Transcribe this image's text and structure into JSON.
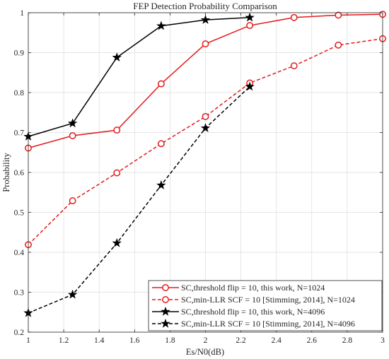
{
  "chart_data": {
    "type": "line",
    "title": "FEP Detection Probability Comparison",
    "xlabel": "Es/N0(dB)",
    "ylabel": "Probability",
    "xlim": [
      1,
      3
    ],
    "ylim": [
      0.2,
      1
    ],
    "grid": true,
    "legend_position": "bottom-right",
    "x_ticks": [
      "1",
      "1.2",
      "1.4",
      "1.6",
      "1.8",
      "2",
      "2.2",
      "2.4",
      "2.6",
      "2.8",
      "3"
    ],
    "y_ticks": [
      "0.2",
      "0.3",
      "0.4",
      "0.5",
      "0.6",
      "0.7",
      "0.8",
      "0.9",
      "1"
    ],
    "series": [
      {
        "name": "SC,threshold flip = 10, this work, N=1024",
        "color": "#e41a1c",
        "line_style": "solid",
        "marker": "circle",
        "x": [
          1,
          1.25,
          1.5,
          1.75,
          2,
          2.25,
          2.5,
          2.75,
          3
        ],
        "y": [
          0.661,
          0.692,
          0.706,
          0.822,
          0.922,
          0.968,
          0.988,
          0.994,
          0.996
        ]
      },
      {
        "name": "SC,min-LLR SCF = 10 [Stimming, 2014], N=1024",
        "color": "#e41a1c",
        "line_style": "dashed",
        "marker": "circle",
        "x": [
          1,
          1.25,
          1.5,
          1.75,
          2,
          2.25,
          2.5,
          2.75,
          3
        ],
        "y": [
          0.419,
          0.529,
          0.599,
          0.672,
          0.74,
          0.824,
          0.867,
          0.919,
          0.935
        ]
      },
      {
        "name": "SC,threshold flip = 10, this work, N=4096",
        "color": "#000000",
        "line_style": "solid",
        "marker": "star",
        "x": [
          1,
          1.25,
          1.5,
          1.75,
          2,
          2.25
        ],
        "y": [
          0.69,
          0.723,
          0.888,
          0.967,
          0.982,
          0.988
        ]
      },
      {
        "name": "SC,min-LLR SCF = 10 [Stimming, 2014], N=4096",
        "color": "#000000",
        "line_style": "dashed",
        "marker": "star",
        "x": [
          1,
          1.25,
          1.5,
          1.75,
          2,
          2.25
        ],
        "y": [
          0.248,
          0.294,
          0.423,
          0.568,
          0.711,
          0.815
        ]
      }
    ]
  }
}
